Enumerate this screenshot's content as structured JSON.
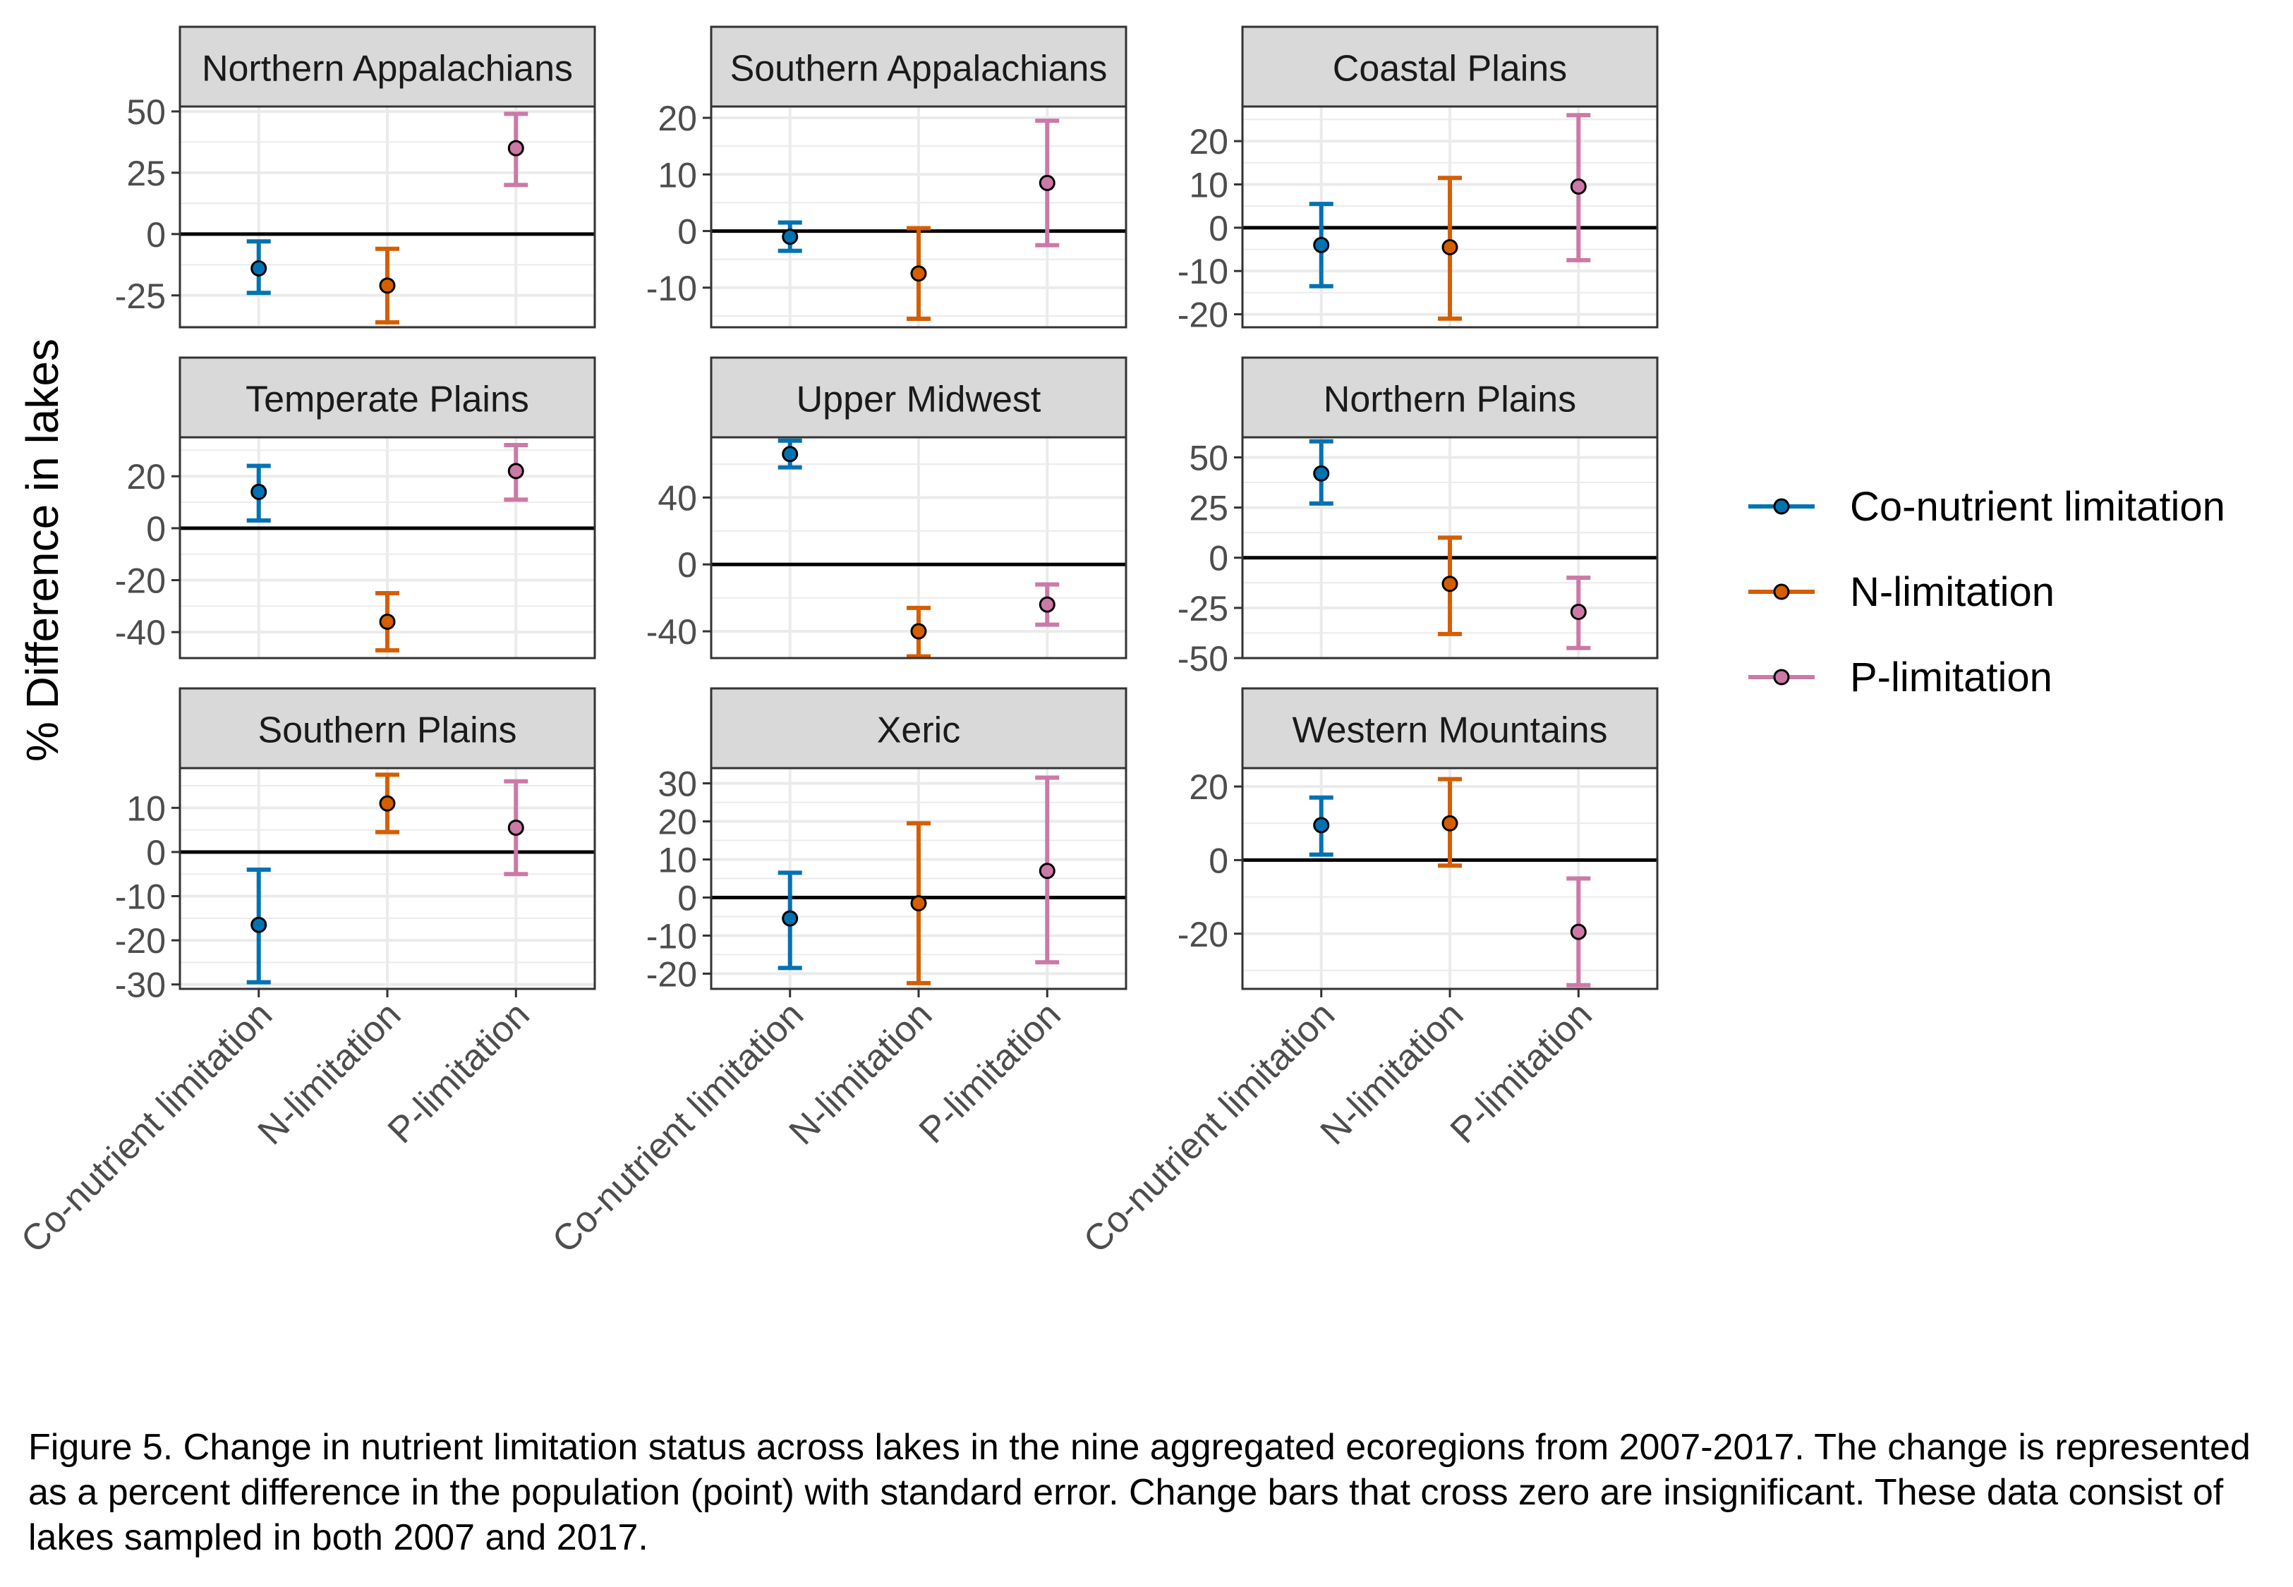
{
  "colors": {
    "Co-nutrient limitation": "#0072B2",
    "N-limitation": "#D55E00",
    "P-limitation": "#CC79A7",
    "strip_fill": "#D9D9D9",
    "grid": "#EBEBEB"
  },
  "chart_data": {
    "type": "errorbar-facet",
    "ylabel": "% Difference in lakes",
    "categories": [
      "Co-nutrient limitation",
      "N-limitation",
      "P-limitation"
    ],
    "legend": {
      "position": "right",
      "entries": [
        "Co-nutrient limitation",
        "N-limitation",
        "P-limitation"
      ]
    },
    "grid": true,
    "zero_line": true,
    "panels": [
      {
        "title": "Northern Appalachians",
        "ylim": [
          -38,
          52
        ],
        "yticks": [
          -25,
          0,
          25,
          50
        ],
        "points": [
          {
            "category": "Co-nutrient limitation",
            "value": -14,
            "low": -24,
            "high": -3
          },
          {
            "category": "N-limitation",
            "value": -21,
            "low": -36,
            "high": -6
          },
          {
            "category": "P-limitation",
            "value": 35,
            "low": 20,
            "high": 49
          }
        ]
      },
      {
        "title": "Southern Appalachians",
        "ylim": [
          -17,
          22
        ],
        "yticks": [
          -10,
          0,
          10,
          20
        ],
        "points": [
          {
            "category": "Co-nutrient limitation",
            "value": -1,
            "low": -3.5,
            "high": 1.5
          },
          {
            "category": "N-limitation",
            "value": -7.5,
            "low": -15.5,
            "high": 0.5
          },
          {
            "category": "P-limitation",
            "value": 8.5,
            "low": -2.5,
            "high": 19.5
          }
        ]
      },
      {
        "title": "Coastal Plains",
        "ylim": [
          -23,
          28
        ],
        "yticks": [
          -20,
          -10,
          0,
          10,
          20
        ],
        "points": [
          {
            "category": "Co-nutrient limitation",
            "value": -4,
            "low": -13.5,
            "high": 5.5
          },
          {
            "category": "N-limitation",
            "value": -4.5,
            "low": -21,
            "high": 11.5
          },
          {
            "category": "P-limitation",
            "value": 9.5,
            "low": -7.5,
            "high": 26
          }
        ]
      },
      {
        "title": "Temperate Plains",
        "ylim": [
          -50,
          35
        ],
        "yticks": [
          -40,
          -20,
          0,
          20
        ],
        "points": [
          {
            "category": "Co-nutrient limitation",
            "value": 14,
            "low": 3,
            "high": 24
          },
          {
            "category": "N-limitation",
            "value": -36,
            "low": -47,
            "high": -25
          },
          {
            "category": "P-limitation",
            "value": 22,
            "low": 11,
            "high": 32
          }
        ]
      },
      {
        "title": "Upper Midwest",
        "ylim": [
          -56,
          76
        ],
        "yticks": [
          -40,
          0,
          40
        ],
        "points": [
          {
            "category": "Co-nutrient limitation",
            "value": 66,
            "low": 58,
            "high": 74
          },
          {
            "category": "N-limitation",
            "value": -40,
            "low": -55,
            "high": -26
          },
          {
            "category": "P-limitation",
            "value": -24,
            "low": -36,
            "high": -12
          }
        ]
      },
      {
        "title": "Northern Plains",
        "ylim": [
          -50,
          60
        ],
        "yticks": [
          -50,
          -25,
          0,
          25,
          50
        ],
        "points": [
          {
            "category": "Co-nutrient limitation",
            "value": 42,
            "low": 27,
            "high": 58
          },
          {
            "category": "N-limitation",
            "value": -13,
            "low": -38,
            "high": 10
          },
          {
            "category": "P-limitation",
            "value": -27,
            "low": -45,
            "high": -10
          }
        ]
      },
      {
        "title": "Southern Plains",
        "ylim": [
          -31,
          19
        ],
        "yticks": [
          -30,
          -20,
          -10,
          0,
          10
        ],
        "points": [
          {
            "category": "Co-nutrient limitation",
            "value": -16.5,
            "low": -29.5,
            "high": -4
          },
          {
            "category": "N-limitation",
            "value": 11,
            "low": 4.5,
            "high": 17.5
          },
          {
            "category": "P-limitation",
            "value": 5.5,
            "low": -5,
            "high": 16
          }
        ]
      },
      {
        "title": "Xeric",
        "ylim": [
          -24,
          34
        ],
        "yticks": [
          -20,
          -10,
          0,
          10,
          20,
          30
        ],
        "points": [
          {
            "category": "Co-nutrient limitation",
            "value": -5.5,
            "low": -18.5,
            "high": 6.5
          },
          {
            "category": "N-limitation",
            "value": -1.5,
            "low": -22.5,
            "high": 19.5
          },
          {
            "category": "P-limitation",
            "value": 7,
            "low": -17,
            "high": 31.5
          }
        ]
      },
      {
        "title": "Western Mountains",
        "ylim": [
          -35,
          25
        ],
        "yticks": [
          -20,
          0,
          20
        ],
        "points": [
          {
            "category": "Co-nutrient limitation",
            "value": 9.5,
            "low": 1.5,
            "high": 17
          },
          {
            "category": "N-limitation",
            "value": 10,
            "low": -1.5,
            "high": 22
          },
          {
            "category": "P-limitation",
            "value": -19.5,
            "low": -34,
            "high": -5
          }
        ]
      }
    ]
  },
  "caption": "Figure 5. Change in nutrient limitation status across lakes in the nine aggregated ecoregions from 2007-2017. The change is represented as a percent difference in the population (point) with standard error. Change bars that cross zero are insignificant. These data consist of lakes sampled in both 2007 and 2017."
}
